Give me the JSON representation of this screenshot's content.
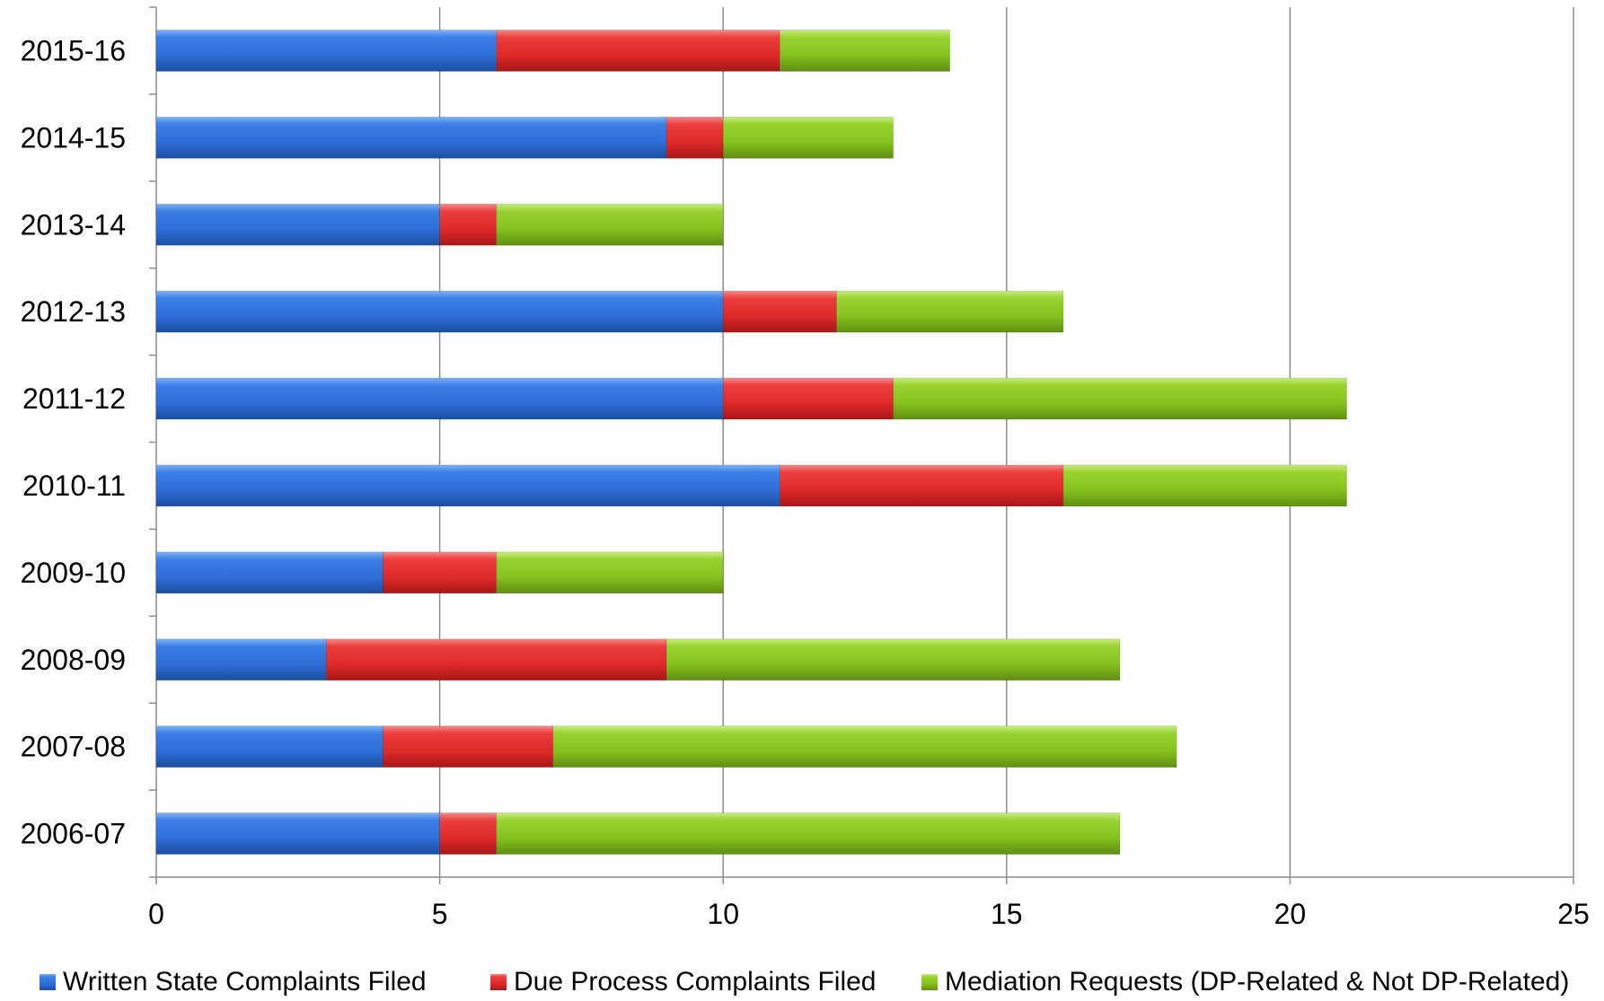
{
  "chart_data": {
    "type": "bar",
    "orientation": "horizontal",
    "stacked": true,
    "categories": [
      "2015-16",
      "2014-15",
      "2013-14",
      "2012-13",
      "2011-12",
      "2010-11",
      "2009-10",
      "2008-09",
      "2007-08",
      "2006-07"
    ],
    "series": [
      {
        "name": "Written State Complaints Filed",
        "color": "#2e6fd8",
        "values": [
          6,
          9,
          5,
          10,
          10,
          11,
          4,
          3,
          4,
          5
        ]
      },
      {
        "name": "Due Process Complaints Filed",
        "color": "#e02a2a",
        "values": [
          5,
          1,
          1,
          2,
          3,
          5,
          2,
          6,
          3,
          1
        ]
      },
      {
        "name": "Mediation Requests (DP-Related & Not DP-Related)",
        "color": "#86c21e",
        "values": [
          3,
          3,
          4,
          4,
          8,
          5,
          4,
          8,
          11,
          11
        ]
      }
    ],
    "xlim": [
      0,
      25
    ],
    "xticks": [
      "0",
      "5",
      "10",
      "15",
      "20",
      "25"
    ],
    "xtick_values": [
      0,
      5,
      10,
      15,
      20,
      25
    ],
    "grid": "vertical",
    "legend_position": "bottom",
    "title": "",
    "xlabel": "",
    "ylabel": ""
  }
}
